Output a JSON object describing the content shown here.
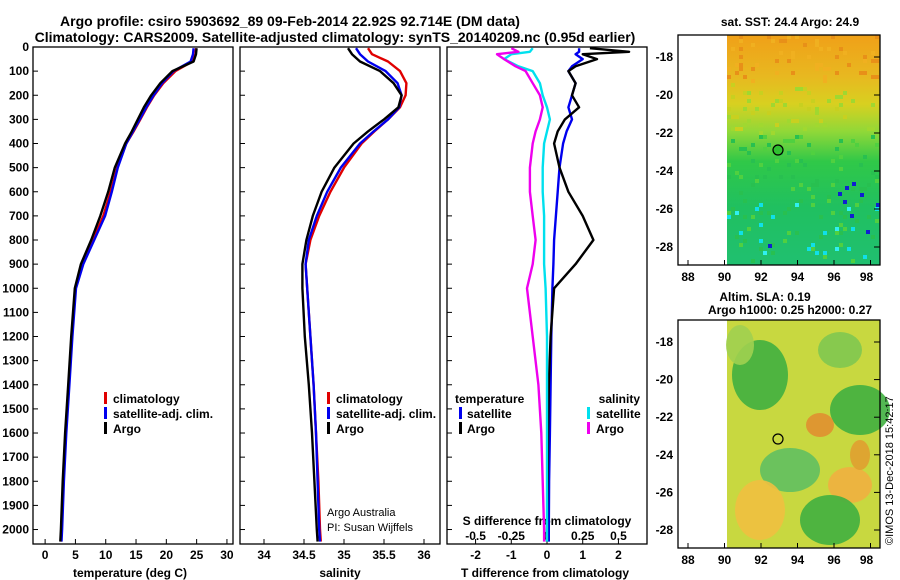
{
  "title": {
    "line1": "Argo profile: csiro 5903692_89 09-Feb-2014 22.92S 92.714E (DM data)",
    "line2": "Climatology: CARS2009. Satellite-adjusted climatology: synTS_20140209.nc (0.95d earlier)"
  },
  "colors": {
    "climatology": "#e00000",
    "satellite": "#0000ee",
    "argo": "#000000",
    "sal_satellite": "#00e0ee",
    "sal_argo": "#ee00ee"
  },
  "legend": {
    "climatology": "climatology",
    "satellite": "satellite-adj. clim.",
    "argo": "Argo"
  },
  "legend_diff": {
    "temp_heading": "temperature",
    "sal_heading": "salinity",
    "satellite": "satellite",
    "argo": "Argo"
  },
  "credit": {
    "line1": "Argo Australia",
    "line2": "PI: Susan Wijffels"
  },
  "diff_s_label": "S difference from climatology",
  "watermark": "©IMOS 13-Dec-2018 15:42:17",
  "maps": {
    "sst_title": "sat. SST: 24.4 Argo: 24.9",
    "sla_title1": "Altim. SLA: 0.19",
    "sla_title2": "Argo h1000: 0.25 h2000: 0.27",
    "lat_ticks": [
      "-18",
      "-20",
      "-22",
      "-24",
      "-26",
      "-28"
    ],
    "lon_ticks": [
      "88",
      "90",
      "92",
      "94",
      "96",
      "98"
    ]
  },
  "chart_data": [
    {
      "type": "line",
      "name": "temperature",
      "xlabel": "temperature (deg C)",
      "ylabel": "",
      "xlim": [
        -2,
        31
      ],
      "ylim": [
        2060,
        0
      ],
      "xticks": [
        "0",
        "5",
        "10",
        "15",
        "20",
        "25",
        "30"
      ],
      "xtick_values": [
        0,
        5,
        10,
        15,
        20,
        25,
        30
      ],
      "yticks": [
        "0",
        "100",
        "200",
        "300",
        "400",
        "500",
        "600",
        "700",
        "800",
        "900",
        "1000",
        "1100",
        "1200",
        "1300",
        "1400",
        "1500",
        "1600",
        "1700",
        "1800",
        "1900",
        "2000"
      ],
      "ytick_values": [
        0,
        100,
        200,
        300,
        400,
        500,
        600,
        700,
        800,
        900,
        1000,
        1100,
        1200,
        1300,
        1400,
        1500,
        1600,
        1700,
        1800,
        1900,
        2000
      ],
      "depth": [
        5,
        30,
        60,
        100,
        150,
        200,
        250,
        300,
        350,
        400,
        500,
        600,
        700,
        800,
        900,
        1000,
        1200,
        1400,
        1600,
        1800,
        2000,
        2050
      ],
      "series": [
        {
          "name": "climatology",
          "values": [
            24.9,
            24.8,
            24.3,
            21.5,
            19.5,
            18.0,
            16.8,
            15.7,
            14.6,
            13.4,
            11.9,
            10.8,
            9.6,
            7.9,
            6.1,
            5.0,
            4.4,
            3.9,
            3.4,
            3.0,
            2.7,
            2.6
          ]
        },
        {
          "name": "satellite-adj. clim.",
          "values": [
            24.5,
            24.4,
            24.0,
            21.2,
            19.3,
            17.9,
            16.7,
            15.6,
            14.5,
            13.4,
            12.0,
            11.0,
            9.9,
            8.1,
            6.3,
            5.1,
            4.5,
            4.0,
            3.5,
            3.1,
            2.8,
            2.7
          ]
        },
        {
          "name": "Argo",
          "values": [
            25.0,
            24.9,
            24.5,
            21.0,
            19.0,
            17.5,
            16.3,
            15.3,
            14.3,
            13.2,
            11.5,
            10.4,
            9.1,
            7.6,
            5.9,
            4.9,
            4.3,
            3.8,
            3.3,
            2.9,
            2.6,
            2.5
          ]
        }
      ]
    },
    {
      "type": "line",
      "name": "salinity",
      "xlabel": "salinity",
      "xlim": [
        33.7,
        36.2
      ],
      "ylim": [
        2060,
        0
      ],
      "xticks": [
        "34",
        "34.5",
        "35",
        "35.5",
        "36"
      ],
      "xtick_values": [
        34,
        34.5,
        35,
        35.5,
        36
      ],
      "depth": [
        5,
        30,
        60,
        100,
        150,
        200,
        250,
        300,
        350,
        400,
        500,
        600,
        700,
        800,
        900,
        1000,
        1200,
        1400,
        1600,
        1800,
        2000,
        2050
      ],
      "series": [
        {
          "name": "climatology",
          "values": [
            35.3,
            35.35,
            35.55,
            35.7,
            35.78,
            35.77,
            35.7,
            35.55,
            35.38,
            35.22,
            35.0,
            34.83,
            34.69,
            34.58,
            34.52,
            34.54,
            34.58,
            34.62,
            34.65,
            34.68,
            34.7,
            34.71
          ]
        },
        {
          "name": "satellite-adj. clim.",
          "values": [
            35.15,
            35.2,
            35.3,
            35.52,
            35.67,
            35.72,
            35.69,
            35.55,
            35.37,
            35.2,
            34.96,
            34.79,
            34.66,
            34.56,
            34.52,
            34.54,
            34.58,
            34.62,
            34.65,
            34.67,
            34.69,
            34.7
          ]
        },
        {
          "name": "Argo",
          "values": [
            35.05,
            35.1,
            35.2,
            35.45,
            35.62,
            35.72,
            35.68,
            35.5,
            35.3,
            35.12,
            34.88,
            34.72,
            34.61,
            34.53,
            34.48,
            34.48,
            34.51,
            34.56,
            34.6,
            34.63,
            34.66,
            34.67
          ]
        }
      ]
    },
    {
      "type": "line",
      "name": "difference",
      "xlabel": "T difference from climatology",
      "xlim": [
        -2.8,
        2.8
      ],
      "ylim": [
        2060,
        0
      ],
      "xticks": [
        "-2",
        "-1",
        "0",
        "1",
        "2"
      ],
      "xtick_values": [
        -2,
        -1,
        0,
        1,
        2
      ],
      "s_xticks": [
        "-0.5",
        "-0.25",
        "0",
        "0.25",
        "0.5"
      ],
      "s_xtick_values": [
        -0.5,
        -0.25,
        0,
        0.25,
        0.5
      ],
      "depth": [
        5,
        20,
        30,
        50,
        80,
        100,
        150,
        200,
        250,
        300,
        350,
        400,
        500,
        600,
        700,
        800,
        900,
        1000,
        1200,
        1400,
        1600,
        1800,
        2000,
        2050
      ],
      "series": [
        {
          "name": "T satellite",
          "values": [
            0.9,
            0.9,
            0.8,
            1.0,
            0.7,
            0.6,
            0.8,
            0.7,
            0.6,
            0.7,
            0.55,
            0.45,
            0.35,
            0.3,
            0.25,
            0.2,
            0.18,
            0.15,
            0.12,
            0.1,
            0.08,
            0.06,
            0.05,
            0.05
          ]
        },
        {
          "name": "T Argo",
          "values": [
            1.2,
            2.3,
            1.0,
            1.4,
            0.8,
            0.6,
            0.8,
            0.7,
            0.9,
            0.5,
            0.3,
            0.2,
            0.35,
            0.6,
            1.0,
            1.3,
            0.8,
            0.2,
            0.1,
            0.05,
            0.03,
            0.02,
            0.0,
            0.0
          ]
        },
        {
          "name": "S satellite",
          "values": [
            -0.1,
            -0.12,
            -0.25,
            -0.3,
            -0.2,
            -0.1,
            -0.05,
            -0.03,
            0.0,
            0.02,
            0.0,
            -0.02,
            -0.03,
            -0.03,
            -0.02,
            -0.02,
            -0.02,
            -0.01,
            0.0,
            0.0,
            0.0,
            0.0,
            0.0,
            0.0
          ]
        },
        {
          "name": "S Argo",
          "values": [
            -0.25,
            -0.2,
            -0.35,
            -0.3,
            -0.22,
            -0.15,
            -0.1,
            -0.05,
            -0.03,
            -0.05,
            -0.08,
            -0.1,
            -0.12,
            -0.12,
            -0.1,
            -0.08,
            -0.1,
            -0.14,
            -0.1,
            -0.06,
            -0.04,
            -0.03,
            -0.02,
            -0.02
          ]
        }
      ]
    }
  ]
}
